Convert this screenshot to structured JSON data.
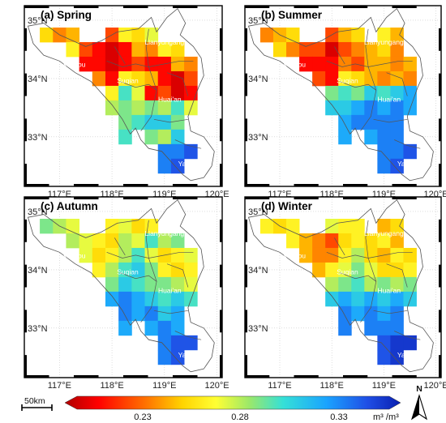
{
  "panels": [
    {
      "title": "(a) Spring"
    },
    {
      "title": "(b) Summer"
    },
    {
      "title": "(c) Autumn"
    },
    {
      "title": "(d) Winter"
    }
  ],
  "lon_ticks": [
    "117°E",
    "118°E",
    "119°E",
    "120°E"
  ],
  "lat_ticks": [
    "35°N",
    "34°N",
    "33°N"
  ],
  "cities": [
    "Lianyungang",
    "Xuzhou",
    "Suqian",
    "Huai'an",
    "Yangzhou"
  ],
  "colorbar": {
    "ticks": [
      "0.23",
      "0.28",
      "0.33"
    ],
    "units": "m³ /m³",
    "colors": [
      "#b00000",
      "#ff0000",
      "#ff7a00",
      "#ffd400",
      "#ffff33",
      "#9be86a",
      "#35e0d7",
      "#1aa3ff",
      "#1f4fe6",
      "#0a1fb0"
    ]
  },
  "scale_bar": {
    "label": "50km"
  },
  "north_arrow": {
    "label": "N"
  },
  "chart_data": {
    "type": "heatmap",
    "title": "",
    "units": "m³ /m³",
    "value_range": [
      0.2,
      0.37
    ],
    "colorbar_ticks": [
      0.23,
      0.28,
      0.33
    ],
    "lon_ticks": [
      117,
      118,
      119,
      120
    ],
    "lat_ticks": [
      35,
      34,
      33
    ],
    "grid_lon": [
      116.75,
      117,
      117.25,
      117.5,
      117.75,
      118,
      118.25,
      118.5,
      118.75,
      119,
      119.25,
      119.5,
      119.75
    ],
    "grid_lat": [
      34.75,
      34.5,
      34.25,
      34.0,
      33.75,
      33.5,
      33.25,
      33.0,
      32.75,
      32.5,
      32.25
    ],
    "panels": [
      {
        "name": "(a) Spring",
        "values": [
          [
            0.26,
            0.24,
            0.25,
            null,
            null,
            0.23,
            0.27,
            0.26,
            0.28,
            null,
            null,
            null,
            null
          ],
          [
            null,
            null,
            0.27,
            0.23,
            0.22,
            0.21,
            0.22,
            0.25,
            0.24,
            0.27,
            0.26,
            null,
            null
          ],
          [
            null,
            null,
            null,
            0.22,
            0.22,
            0.21,
            0.22,
            0.23,
            0.22,
            0.22,
            0.25,
            0.24,
            null
          ],
          [
            null,
            null,
            null,
            null,
            0.24,
            0.22,
            0.27,
            0.26,
            0.25,
            0.22,
            0.21,
            0.23,
            null
          ],
          [
            null,
            null,
            null,
            null,
            null,
            0.27,
            0.31,
            0.28,
            0.22,
            0.23,
            0.21,
            0.22,
            null
          ],
          [
            null,
            null,
            null,
            null,
            null,
            0.29,
            0.3,
            0.29,
            0.3,
            0.29,
            0.31,
            0.28,
            null
          ],
          [
            null,
            null,
            null,
            null,
            null,
            null,
            0.3,
            0.31,
            0.32,
            0.32,
            0.3,
            null,
            null
          ],
          [
            null,
            null,
            null,
            null,
            null,
            null,
            0.31,
            null,
            0.3,
            0.29,
            0.32,
            null,
            null
          ],
          [
            null,
            null,
            null,
            null,
            null,
            null,
            null,
            null,
            null,
            0.34,
            0.34,
            0.35,
            null
          ],
          [
            null,
            null,
            null,
            null,
            null,
            null,
            null,
            null,
            null,
            0.34,
            0.35,
            null,
            null
          ],
          [
            null,
            null,
            null,
            null,
            null,
            null,
            null,
            null,
            null,
            null,
            null,
            null,
            null
          ]
        ]
      },
      {
        "name": "(b) Summer",
        "values": [
          [
            0.24,
            0.25,
            0.26,
            null,
            null,
            0.23,
            0.25,
            0.26,
            null,
            0.27,
            0.25,
            null,
            null
          ],
          [
            null,
            0.26,
            0.24,
            0.23,
            0.23,
            0.21,
            0.23,
            0.24,
            0.25,
            0.26,
            0.24,
            null,
            null
          ],
          [
            null,
            null,
            null,
            0.22,
            0.22,
            0.22,
            0.24,
            0.23,
            0.25,
            0.25,
            0.24,
            0.25,
            null
          ],
          [
            null,
            null,
            null,
            null,
            0.23,
            0.22,
            0.27,
            0.26,
            0.25,
            0.24,
            0.25,
            0.24,
            null
          ],
          [
            null,
            null,
            null,
            null,
            null,
            0.3,
            0.31,
            0.3,
            0.32,
            0.31,
            0.32,
            0.33,
            null
          ],
          [
            null,
            null,
            null,
            null,
            null,
            0.32,
            0.32,
            0.33,
            0.34,
            0.33,
            0.34,
            0.33,
            null
          ],
          [
            null,
            null,
            null,
            null,
            null,
            null,
            0.33,
            0.34,
            0.34,
            0.34,
            0.34,
            null,
            null
          ],
          [
            null,
            null,
            null,
            null,
            null,
            null,
            0.33,
            null,
            0.33,
            0.34,
            0.34,
            null,
            null
          ],
          [
            null,
            null,
            null,
            null,
            null,
            null,
            null,
            null,
            null,
            0.34,
            0.34,
            0.35,
            null
          ],
          [
            null,
            null,
            null,
            null,
            null,
            null,
            null,
            null,
            null,
            0.34,
            0.35,
            null,
            null
          ],
          [
            null,
            null,
            null,
            null,
            null,
            null,
            null,
            null,
            null,
            null,
            null,
            null,
            null
          ]
        ]
      },
      {
        "name": "(c) Autumn",
        "values": [
          [
            0.3,
            0.29,
            0.28,
            null,
            null,
            0.27,
            0.28,
            0.26,
            0.27,
            null,
            null,
            null,
            null
          ],
          [
            null,
            null,
            0.29,
            0.28,
            0.27,
            0.26,
            0.29,
            0.28,
            0.31,
            0.29,
            0.3,
            null,
            null
          ],
          [
            null,
            null,
            null,
            0.28,
            0.26,
            0.27,
            0.29,
            0.31,
            0.28,
            0.26,
            0.27,
            0.28,
            null
          ],
          [
            null,
            null,
            null,
            null,
            0.27,
            0.29,
            0.31,
            0.32,
            0.3,
            0.27,
            0.26,
            0.27,
            null
          ],
          [
            null,
            null,
            null,
            null,
            null,
            0.3,
            0.32,
            0.31,
            0.3,
            0.3,
            0.29,
            0.28,
            null
          ],
          [
            null,
            null,
            null,
            null,
            null,
            0.33,
            0.34,
            0.33,
            0.32,
            0.31,
            0.32,
            0.31,
            null
          ],
          [
            null,
            null,
            null,
            null,
            null,
            null,
            0.34,
            0.33,
            0.34,
            0.32,
            0.33,
            null,
            null
          ],
          [
            null,
            null,
            null,
            null,
            null,
            null,
            0.33,
            null,
            0.33,
            0.34,
            0.33,
            null,
            null
          ],
          [
            null,
            null,
            null,
            null,
            null,
            null,
            null,
            null,
            null,
            0.34,
            0.35,
            0.35,
            null
          ],
          [
            null,
            null,
            null,
            null,
            null,
            null,
            null,
            null,
            null,
            0.34,
            0.35,
            null,
            null
          ],
          [
            null,
            null,
            null,
            null,
            null,
            null,
            null,
            null,
            null,
            null,
            null,
            null,
            null
          ]
        ]
      },
      {
        "name": "(d) Winter",
        "values": [
          [
            0.27,
            0.26,
            0.27,
            null,
            null,
            0.28,
            0.27,
            0.27,
            null,
            0.25,
            0.26,
            null,
            null
          ],
          [
            null,
            null,
            0.27,
            0.25,
            0.24,
            0.23,
            0.26,
            0.27,
            0.26,
            0.27,
            0.25,
            null,
            null
          ],
          [
            null,
            null,
            null,
            0.25,
            0.24,
            0.24,
            0.27,
            0.29,
            0.26,
            0.25,
            0.27,
            0.26,
            null
          ],
          [
            null,
            null,
            null,
            null,
            0.25,
            0.27,
            0.28,
            0.3,
            0.28,
            0.26,
            0.26,
            0.27,
            null
          ],
          [
            null,
            null,
            null,
            null,
            null,
            0.29,
            0.3,
            0.31,
            0.29,
            0.3,
            0.29,
            0.3,
            null
          ],
          [
            null,
            null,
            null,
            null,
            null,
            0.32,
            0.33,
            0.32,
            0.33,
            0.32,
            0.33,
            0.32,
            null
          ],
          [
            null,
            null,
            null,
            null,
            null,
            null,
            0.34,
            0.33,
            0.34,
            0.33,
            0.34,
            null,
            null
          ],
          [
            null,
            null,
            null,
            null,
            null,
            null,
            0.34,
            null,
            0.34,
            0.34,
            0.34,
            null,
            null
          ],
          [
            null,
            null,
            null,
            null,
            null,
            null,
            null,
            null,
            null,
            0.35,
            0.36,
            0.36,
            null
          ],
          [
            null,
            null,
            null,
            null,
            null,
            null,
            null,
            null,
            null,
            0.35,
            0.36,
            null,
            null
          ],
          [
            null,
            null,
            null,
            null,
            null,
            null,
            null,
            null,
            null,
            null,
            null,
            null,
            null
          ]
        ]
      }
    ]
  }
}
